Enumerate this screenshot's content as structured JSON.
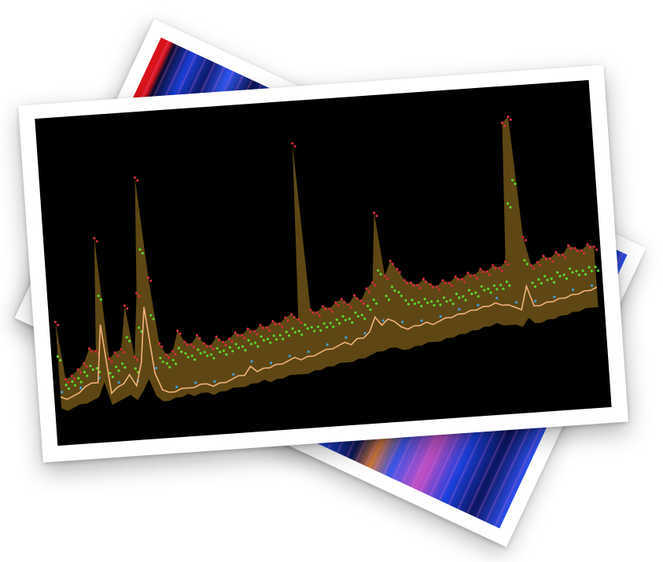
{
  "scene": {
    "description_visible_text": "",
    "colors": {
      "photo_border": "#ffffff",
      "plot_background": "#000000",
      "band_fill": "#6e5418",
      "max_points": "#d12a3c",
      "mid_points": "#5cd62e",
      "low_points": "#3fa0d8",
      "median_line": "#f2b27a",
      "back_photo_red": "#d8141a",
      "back_photo_blue": "#1d48e4",
      "back_photo_magenta": "#b24ac8"
    }
  },
  "photos": [
    {
      "name": "back-photo",
      "content": "blue-magenta-streak-pattern"
    },
    {
      "name": "front-photo",
      "content": "waveform-band-chart"
    }
  ],
  "waveform": {
    "top": [
      0.32,
      0.12,
      0.13,
      0.15,
      0.17,
      0.22,
      0.21,
      0.6,
      0.18,
      0.2,
      0.21,
      0.36,
      0.18,
      0.4,
      0.8,
      0.45,
      0.22,
      0.18,
      0.19,
      0.26,
      0.22,
      0.21,
      0.24,
      0.21,
      0.2,
      0.23,
      0.21,
      0.22,
      0.24,
      0.23,
      0.25,
      0.24,
      0.26,
      0.25,
      0.27,
      0.26,
      0.28,
      0.29,
      0.27,
      0.88,
      0.3,
      0.29,
      0.31,
      0.3,
      0.32,
      0.33,
      0.31,
      0.34,
      0.32,
      0.36,
      0.38,
      0.62,
      0.4,
      0.45,
      0.42,
      0.38,
      0.37,
      0.36,
      0.38,
      0.36,
      0.35,
      0.37,
      0.36,
      0.38,
      0.37,
      0.39,
      0.38,
      0.4,
      0.39,
      0.41,
      0.4,
      0.42,
      0.9,
      0.92,
      0.5,
      0.4,
      0.41,
      0.43,
      0.42,
      0.44,
      0.43,
      0.46,
      0.45,
      0.44,
      0.46,
      0.45
    ],
    "mid": [
      0.2,
      0.1,
      0.11,
      0.12,
      0.14,
      0.16,
      0.15,
      0.4,
      0.13,
      0.15,
      0.16,
      0.25,
      0.14,
      0.28,
      0.55,
      0.32,
      0.17,
      0.15,
      0.16,
      0.2,
      0.18,
      0.17,
      0.19,
      0.18,
      0.17,
      0.19,
      0.18,
      0.19,
      0.2,
      0.19,
      0.21,
      0.2,
      0.22,
      0.21,
      0.22,
      0.22,
      0.23,
      0.24,
      0.23,
      0.25,
      0.24,
      0.24,
      0.25,
      0.25,
      0.26,
      0.27,
      0.26,
      0.28,
      0.27,
      0.3,
      0.32,
      0.42,
      0.33,
      0.36,
      0.34,
      0.31,
      0.31,
      0.3,
      0.31,
      0.3,
      0.3,
      0.31,
      0.3,
      0.32,
      0.31,
      0.33,
      0.32,
      0.34,
      0.33,
      0.34,
      0.34,
      0.35,
      0.62,
      0.7,
      0.42,
      0.34,
      0.35,
      0.36,
      0.35,
      0.37,
      0.36,
      0.38,
      0.37,
      0.37,
      0.38,
      0.38
    ],
    "median": [
      0.06,
      0.05,
      0.06,
      0.07,
      0.09,
      0.1,
      0.1,
      0.3,
      0.06,
      0.08,
      0.09,
      0.12,
      0.08,
      0.16,
      0.35,
      0.12,
      0.06,
      0.05,
      0.05,
      0.06,
      0.06,
      0.06,
      0.07,
      0.07,
      0.06,
      0.07,
      0.07,
      0.08,
      0.09,
      0.09,
      0.12,
      0.1,
      0.11,
      0.11,
      0.12,
      0.12,
      0.13,
      0.14,
      0.13,
      0.14,
      0.14,
      0.15,
      0.16,
      0.16,
      0.17,
      0.18,
      0.17,
      0.19,
      0.19,
      0.21,
      0.26,
      0.23,
      0.25,
      0.24,
      0.22,
      0.21,
      0.22,
      0.22,
      0.23,
      0.22,
      0.23,
      0.24,
      0.24,
      0.25,
      0.25,
      0.26,
      0.26,
      0.27,
      0.27,
      0.28,
      0.27,
      0.27,
      0.26,
      0.25,
      0.33,
      0.26,
      0.26,
      0.27,
      0.27,
      0.28,
      0.28,
      0.29,
      0.29,
      0.3,
      0.3,
      0.31
    ],
    "bottom": [
      0.02,
      0.01,
      0.02,
      0.03,
      0.03,
      0.04,
      0.05,
      0.1,
      0.02,
      0.03,
      0.04,
      0.05,
      0.03,
      0.06,
      0.1,
      0.04,
      0.02,
      0.02,
      0.03,
      0.03,
      0.04,
      0.03,
      0.04,
      0.04,
      0.03,
      0.04,
      0.04,
      0.05,
      0.05,
      0.05,
      0.06,
      0.06,
      0.07,
      0.06,
      0.07,
      0.07,
      0.08,
      0.08,
      0.08,
      0.08,
      0.09,
      0.09,
      0.1,
      0.1,
      0.11,
      0.11,
      0.11,
      0.12,
      0.12,
      0.13,
      0.14,
      0.14,
      0.15,
      0.15,
      0.14,
      0.14,
      0.15,
      0.15,
      0.16,
      0.16,
      0.16,
      0.17,
      0.17,
      0.18,
      0.18,
      0.19,
      0.19,
      0.2,
      0.2,
      0.21,
      0.2,
      0.2,
      0.2,
      0.19,
      0.22,
      0.2,
      0.2,
      0.21,
      0.21,
      0.22,
      0.22,
      0.23,
      0.23,
      0.24,
      0.24,
      0.24
    ]
  }
}
